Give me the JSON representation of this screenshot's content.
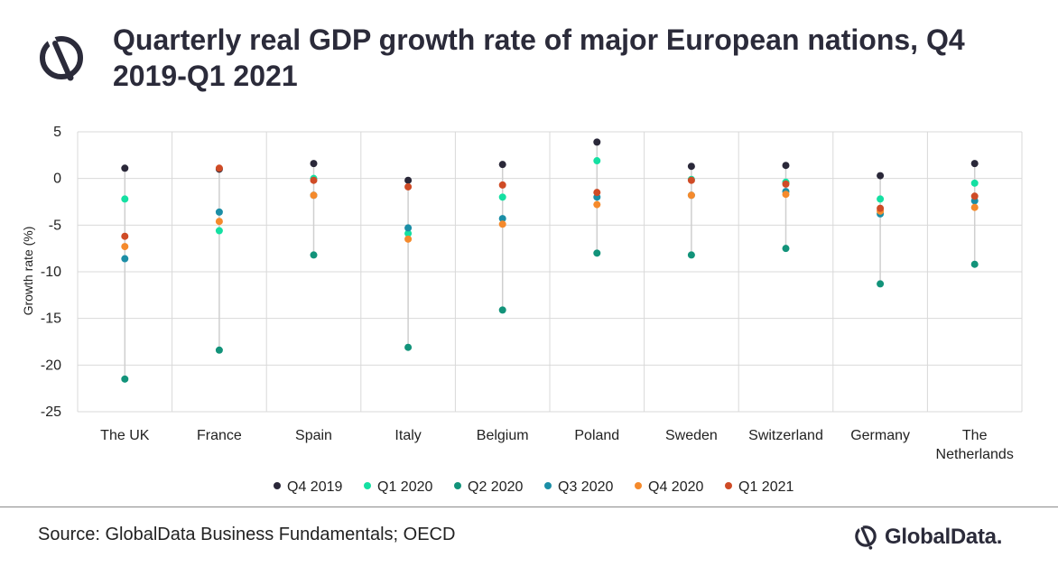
{
  "header": {
    "title": "Quarterly real GDP growth rate of major European nations, Q4 2019-Q1 2021"
  },
  "chart_data": {
    "type": "scatter",
    "title": "Quarterly real GDP growth rate of major European nations, Q4 2019-Q1 2021",
    "ylabel": "Growth rate (%)",
    "xlabel": "",
    "ylim": [
      -25,
      5
    ],
    "yticks": [
      5,
      0,
      -5,
      -10,
      -15,
      -20,
      -25
    ],
    "grid": true,
    "legend_position": "bottom",
    "categories": [
      "The UK",
      "France",
      "Spain",
      "Italy",
      "Belgium",
      "Poland",
      "Sweden",
      "Switzerland",
      "Germany",
      "The Netherlands"
    ],
    "series": [
      {
        "name": "Q4 2019",
        "color": "#2a2839",
        "values": [
          1.1,
          1.0,
          1.6,
          -0.2,
          1.5,
          3.9,
          1.3,
          1.4,
          0.3,
          1.6
        ]
      },
      {
        "name": "Q1 2020",
        "color": "#14e0a2",
        "values": [
          -2.2,
          -5.6,
          0.0,
          -5.9,
          -2.0,
          1.9,
          -0.1,
          -0.4,
          -2.2,
          -0.5
        ]
      },
      {
        "name": "Q2 2020",
        "color": "#12937a",
        "values": [
          -21.5,
          -18.4,
          -8.2,
          -18.1,
          -14.1,
          -8.0,
          -8.2,
          -7.5,
          -11.3,
          -9.2
        ]
      },
      {
        "name": "Q3 2020",
        "color": "#1b8ea6",
        "values": [
          -8.6,
          -3.6,
          -1.8,
          -5.3,
          -4.3,
          -2.0,
          -1.8,
          -1.4,
          -3.8,
          -2.4
        ]
      },
      {
        "name": "Q4 2020",
        "color": "#f58a2c",
        "values": [
          -7.3,
          -4.6,
          -1.8,
          -6.5,
          -4.9,
          -2.8,
          -1.8,
          -1.7,
          -3.5,
          -3.1
        ]
      },
      {
        "name": "Q1 2021",
        "color": "#cf4b26",
        "values": [
          -6.2,
          1.1,
          -0.2,
          -0.9,
          -0.7,
          -1.5,
          -0.2,
          -0.6,
          -3.2,
          -1.9
        ]
      }
    ]
  },
  "footer": {
    "source": "Source: GlobalData Business Fundamentals; OECD",
    "brand": "GlobalData."
  },
  "icons": {
    "title_logo": "globaldata-logo-icon",
    "brand_logo": "globaldata-logo-icon"
  },
  "colors": {
    "grid": "#d9d9d9",
    "range_line": "#cfcfcf",
    "brand": "#2b2b3a"
  }
}
